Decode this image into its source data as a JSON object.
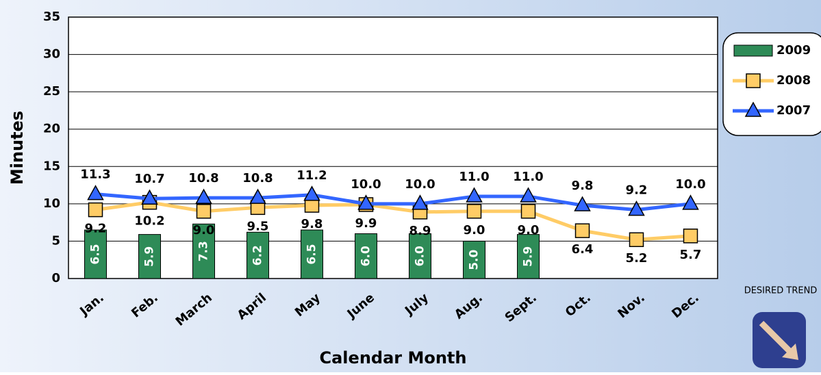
{
  "chart_data": {
    "type": "bar_line",
    "ylabel": "Minutes",
    "xlabel": "Calendar Month",
    "categories": [
      "Jan.",
      "Feb.",
      "March",
      "April",
      "May",
      "June",
      "July",
      "Aug.",
      "Sept.",
      "Oct.",
      "Nov.",
      "Dec."
    ],
    "ylim": [
      0,
      35
    ],
    "yticks": [
      0,
      5,
      10,
      15,
      20,
      25,
      30,
      35
    ],
    "grid": true,
    "legend": "right",
    "annotation": "DESIRED TREND",
    "series": [
      {
        "name": "2009",
        "type": "bar",
        "color": "#2e8b57",
        "values": [
          6.5,
          5.9,
          7.3,
          6.2,
          6.5,
          6,
          6,
          5,
          5.9,
          null,
          null,
          null
        ],
        "value_labels": [
          "6.5",
          "5.9",
          "7.3",
          "6.2",
          "6.5",
          "6.0",
          "6.0",
          "5.0",
          "5.9",
          null,
          null,
          null
        ]
      },
      {
        "name": "2008",
        "type": "line",
        "marker": "square",
        "color": "#ffcc66",
        "values": [
          9.2,
          10.2,
          9.0,
          9.5,
          9.8,
          9.9,
          8.9,
          9.0,
          9.0,
          6.4,
          5.2,
          5.7
        ],
        "value_labels": [
          "9.2",
          "10.2",
          "9.0",
          "9.5",
          "9.8",
          "9.9",
          "8.9",
          "9.0",
          "9.0",
          "6.4",
          "5.2",
          "5.7"
        ]
      },
      {
        "name": "2007",
        "type": "line",
        "marker": "triangle",
        "color": "#3366ff",
        "values": [
          11.3,
          10.7,
          10.8,
          10.8,
          11.2,
          10.0,
          10.0,
          11.0,
          11.0,
          9.8,
          9.2,
          10.0
        ],
        "value_labels": [
          "11.3",
          "10.7",
          "10.8",
          "10.8",
          "11.2",
          "10.0",
          "10.0",
          "11.0",
          "11.0",
          "9.8",
          "9.2",
          "10.0"
        ]
      }
    ]
  }
}
